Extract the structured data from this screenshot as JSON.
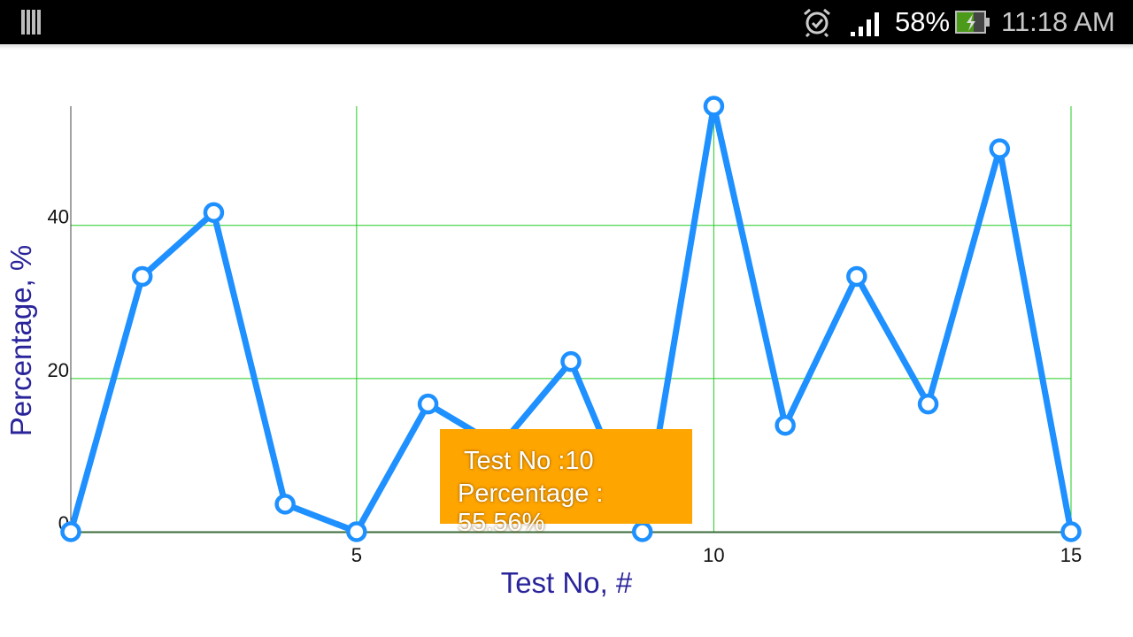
{
  "status_bar": {
    "battery_percent": "58%",
    "time": "11:18 AM",
    "icons": [
      "notification-bars-icon",
      "alarm-icon",
      "signal-icon",
      "battery-charging-icon"
    ]
  },
  "chart_data": {
    "type": "line",
    "xlabel": "Test No, #",
    "ylabel": "Percentage, %",
    "x": [
      1,
      2,
      3,
      4,
      5,
      6,
      7,
      8,
      9,
      10,
      11,
      12,
      13,
      14,
      15
    ],
    "values": [
      0,
      33.33,
      41.67,
      3.6,
      0,
      16.67,
      11.11,
      22.22,
      0,
      55.56,
      13.89,
      33.33,
      16.67,
      50,
      0
    ],
    "xlim": [
      1,
      15
    ],
    "ylim": [
      0,
      55.56
    ],
    "x_ticks": [
      "5",
      "10",
      "15"
    ],
    "y_ticks": [
      "0",
      "20",
      "40"
    ],
    "grid": true,
    "series_color": "#1e90ff",
    "grid_color": "#22cc22",
    "tooltip": {
      "line1": "Test No :10",
      "line2": "Percentage : 55.56%",
      "color": "#ffa500"
    }
  }
}
